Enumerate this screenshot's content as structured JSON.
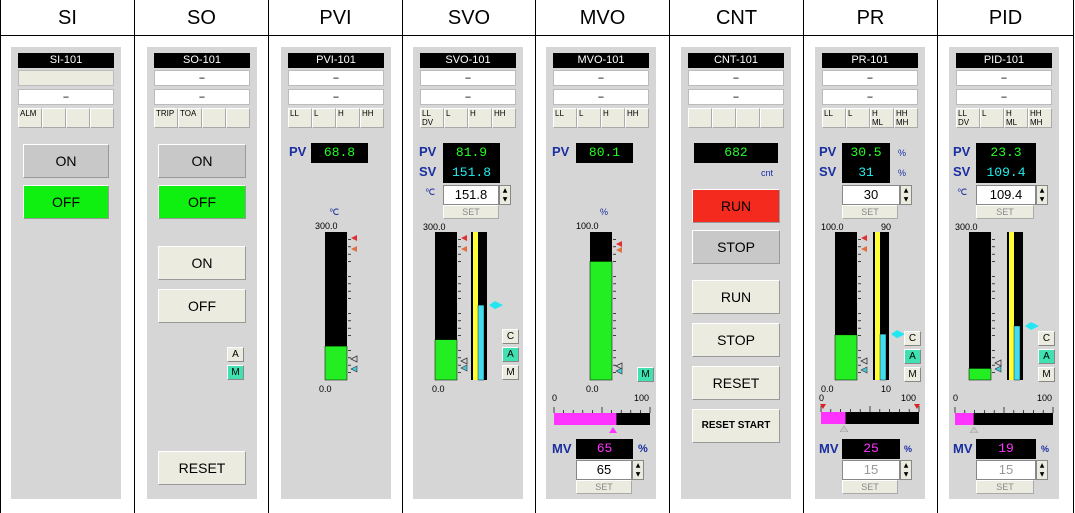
{
  "headers": [
    "SI",
    "SO",
    "PVI",
    "SVO",
    "MVO",
    "CNT",
    "PR",
    "PID"
  ],
  "dash": "–",
  "si": {
    "tag": "SI-101",
    "alarm": "ALM",
    "on": "ON",
    "off": "OFF"
  },
  "so": {
    "tag": "SO-101",
    "alarm1": "TRIP",
    "alarm2": "TOA",
    "on": "ON",
    "off": "OFF",
    "on2": "ON",
    "off2": "OFF",
    "a": "A",
    "m": "M",
    "reset": "RESET"
  },
  "pvi": {
    "tag": "PVI-101",
    "ll": "LL",
    "l": "L",
    "h": "H",
    "hh": "HH",
    "pv_label": "PV",
    "pv": "68.8",
    "unit": "℃",
    "max": "300.0",
    "min": "0.0",
    "pv_fraction": 0.229
  },
  "svo": {
    "tag": "SVO-101",
    "ll": "LL",
    "dv": "DV",
    "l": "L",
    "h": "H",
    "hh": "HH",
    "pv_label": "PV",
    "pv": "81.9",
    "sv_label": "SV",
    "sv": "151.8",
    "unit": "℃",
    "sv_input": "151.8",
    "set": "SET",
    "max": "300.0",
    "min": "0.0",
    "pv_fraction": 0.273,
    "sv_fraction": 0.506,
    "c": "C",
    "a": "A",
    "m": "M"
  },
  "mvo": {
    "tag": "MVO-101",
    "ll": "LL",
    "l": "L",
    "h": "H",
    "hh": "HH",
    "pv_label": "PV",
    "pv": "80.1",
    "unit": "%",
    "max": "100.0",
    "min": "0.0",
    "pv_fraction": 0.801,
    "m": "M",
    "scale_min": "0",
    "scale_max": "100",
    "mv_label": "MV",
    "mv": "65",
    "mv_unit": "%",
    "mv_input": "65",
    "set": "SET",
    "mv_fraction": 0.65
  },
  "cnt": {
    "tag": "CNT-101",
    "count": "682",
    "unit": "cnt",
    "run": "RUN",
    "stop": "STOP",
    "run2": "RUN",
    "stop2": "STOP",
    "reset": "RESET",
    "reset_start": "RESET START"
  },
  "pr": {
    "tag": "PR-101",
    "ll": "LL",
    "l": "L",
    "h": "H",
    "ml": "ML",
    "hh": "HH",
    "mh": "MH",
    "pv_label": "PV",
    "pv": "30.5",
    "pv_unit": "%",
    "sv_label": "SV",
    "sv": "31",
    "sv_unit": "%",
    "sv_input": "30",
    "set": "SET",
    "max_left": "100.0",
    "max_right": "90",
    "min_left": "0.0",
    "min_right": "10",
    "pv_fraction": 0.305,
    "sv_fraction": 0.31,
    "c": "C",
    "a": "A",
    "m": "M",
    "scale_min": "0",
    "scale_max": "100",
    "mv_label": "MV",
    "mv": "25",
    "mv_unit": "%",
    "mv_input": "15",
    "set2": "SET",
    "mv_fraction": 0.25
  },
  "pid": {
    "tag": "PID-101",
    "ll": "LL",
    "dv": "DV",
    "l": "L",
    "h": "H",
    "ml": "ML",
    "hh": "HH",
    "mh": "MH",
    "pv_label": "PV",
    "pv": "23.3",
    "sv_label": "SV",
    "sv": "109.4",
    "unit": "℃",
    "sv_input": "109.4",
    "set": "SET",
    "max": "300.0",
    "pv_fraction": 0.078,
    "sv_fraction": 0.365,
    "c": "C",
    "a": "A",
    "m": "M",
    "scale_min": "0",
    "scale_max": "100",
    "mv_label": "MV",
    "mv": "19",
    "mv_unit": "%",
    "mv_input": "15",
    "set2": "SET",
    "mv_fraction": 0.19
  },
  "colors": {
    "faceplate": "#d6d6d6",
    "green_on": "#10f010",
    "run_red": "#f52a1e",
    "label_blue": "#1a2fa0",
    "bar_green": "#22ee22",
    "bar_cyan": "#44ddee",
    "bar_yellow": "#ffff33",
    "mv_magenta": "#ff33ff"
  }
}
